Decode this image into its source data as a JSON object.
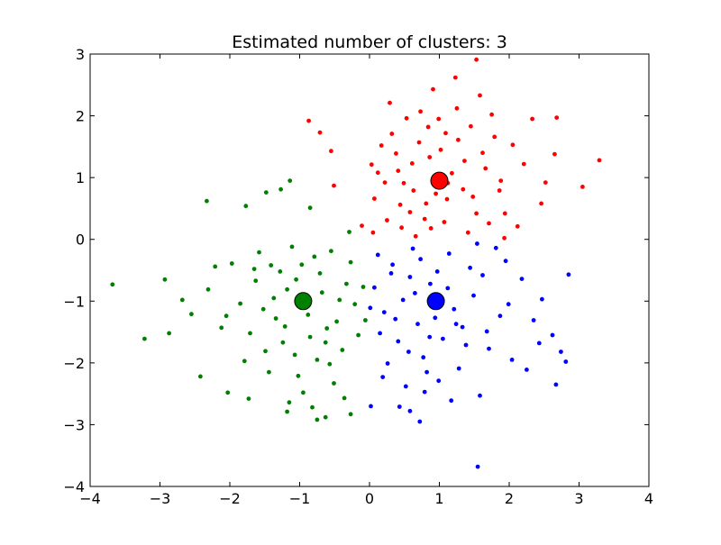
{
  "chart_data": {
    "type": "scatter",
    "title": "Estimated number of clusters: 3",
    "xlabel": "",
    "ylabel": "",
    "xlim": [
      -4,
      4
    ],
    "ylim": [
      -4,
      3
    ],
    "xticks": [
      -4,
      -3,
      -2,
      -1,
      0,
      1,
      2,
      3,
      4
    ],
    "yticks": [
      -4,
      -3,
      -2,
      -1,
      0,
      1,
      2,
      3
    ],
    "xtick_labels": [
      "−4",
      "−3",
      "−2",
      "−1",
      "0",
      "1",
      "2",
      "3",
      "4"
    ],
    "ytick_labels": [
      "−4",
      "−3",
      "−2",
      "−1",
      "0",
      "1",
      "2",
      "3"
    ],
    "grid": false,
    "legend": "none",
    "series": [
      {
        "color": "#ff0000",
        "center": [
          1.0,
          0.95
        ],
        "points": [
          [
            0.97,
            0.89
          ],
          [
            0.71,
            1.57
          ],
          [
            1.53,
            0.42
          ],
          [
            0.12,
            1.08
          ],
          [
            1.62,
            1.4
          ],
          [
            0.88,
            0.18
          ],
          [
            1.25,
            2.12
          ],
          [
            0.44,
            0.56
          ],
          [
            1.88,
            0.95
          ],
          [
            0.61,
            1.23
          ],
          [
            1.11,
            0.65
          ],
          [
            0.32,
            1.71
          ],
          [
            1.45,
            1.83
          ],
          [
            0.79,
            0.33
          ],
          [
            2.21,
            1.22
          ],
          [
            0.25,
            0.31
          ],
          [
            1.02,
            1.45
          ],
          [
            1.71,
            0.26
          ],
          [
            0.53,
            1.96
          ],
          [
            1.34,
            0.81
          ],
          [
            0.91,
            2.43
          ],
          [
            2.46,
            0.58
          ],
          [
            0.07,
            0.66
          ],
          [
            1.18,
            1.07
          ],
          [
            0.66,
            0.05
          ],
          [
            1.79,
            1.66
          ],
          [
            0.38,
            1.39
          ],
          [
            1.07,
            0.28
          ],
          [
            2.05,
            1.53
          ],
          [
            0.84,
            1.82
          ],
          [
            1.41,
            0.11
          ],
          [
            0.17,
            1.52
          ],
          [
            1.58,
            2.33
          ],
          [
            0.95,
            0.74
          ],
          [
            2.65,
            1.38
          ],
          [
            0.49,
            0.91
          ],
          [
            1.27,
            1.61
          ],
          [
            0.73,
            2.07
          ],
          [
            1.94,
            0.42
          ],
          [
            0.29,
            2.21
          ],
          [
            1.12,
            0.91
          ],
          [
            1.66,
            1.15
          ],
          [
            0.58,
            0.44
          ],
          [
            2.33,
            1.95
          ],
          [
            0.03,
            1.21
          ],
          [
            1.48,
            0.69
          ],
          [
            0.86,
            1.33
          ],
          [
            1.23,
            2.62
          ],
          [
            0.41,
            1.11
          ],
          [
            1.86,
            0.79
          ],
          [
            0.99,
            1.95
          ],
          [
            2.12,
            0.21
          ],
          [
            0.63,
            0.79
          ],
          [
            1.36,
            1.27
          ],
          [
            0.22,
            0.92
          ],
          [
            1.75,
            2.02
          ],
          [
            0.81,
            0.58
          ],
          [
            2.52,
            0.92
          ],
          [
            1.09,
            1.72
          ],
          [
            0.46,
            0.19
          ],
          [
            3.05,
            0.85
          ],
          [
            3.29,
            1.28
          ],
          [
            -0.87,
            1.92
          ],
          [
            -0.71,
            1.73
          ],
          [
            -0.55,
            1.43
          ],
          [
            -0.51,
            0.87
          ],
          [
            -0.11,
            0.22
          ],
          [
            0.05,
            0.11
          ],
          [
            1.53,
            2.91
          ],
          [
            1.93,
            0.02
          ],
          [
            2.68,
            1.97
          ]
        ]
      },
      {
        "color": "#0000ff",
        "center": [
          0.95,
          -1.0
        ],
        "points": [
          [
            0.91,
            -1.05
          ],
          [
            0.58,
            -0.61
          ],
          [
            1.33,
            -1.42
          ],
          [
            0.21,
            -1.18
          ],
          [
            1.62,
            -0.58
          ],
          [
            0.77,
            -1.91
          ],
          [
            1.14,
            -0.23
          ],
          [
            0.41,
            -1.65
          ],
          [
            1.87,
            -1.24
          ],
          [
            0.65,
            -0.87
          ],
          [
            1.05,
            -1.61
          ],
          [
            0.33,
            -0.41
          ],
          [
            1.49,
            -0.91
          ],
          [
            0.82,
            -2.15
          ],
          [
            2.18,
            -0.64
          ],
          [
            0.15,
            -1.52
          ],
          [
            1.21,
            -1.13
          ],
          [
            0.52,
            -2.38
          ],
          [
            1.71,
            -1.77
          ],
          [
            0.97,
            -0.52
          ],
          [
            2.35,
            -1.31
          ],
          [
            0.07,
            -0.78
          ],
          [
            1.28,
            -2.09
          ],
          [
            0.69,
            -1.37
          ],
          [
            1.95,
            -0.35
          ],
          [
            0.26,
            -2.01
          ],
          [
            1.12,
            -0.79
          ],
          [
            0.48,
            -0.98
          ],
          [
            1.58,
            -2.53
          ],
          [
            0.86,
            -1.58
          ],
          [
            2.47,
            -0.97
          ],
          [
            0.12,
            -0.25
          ],
          [
            1.38,
            -1.71
          ],
          [
            0.73,
            -0.32
          ],
          [
            2.04,
            -1.95
          ],
          [
            0.37,
            -1.29
          ],
          [
            1.17,
            -2.61
          ],
          [
            0.94,
            -1.27
          ],
          [
            1.81,
            -0.14
          ],
          [
            0.56,
            -1.82
          ],
          [
            2.62,
            -1.55
          ],
          [
            0.19,
            -2.23
          ],
          [
            1.44,
            -0.46
          ],
          [
            0.79,
            -2.47
          ],
          [
            1.99,
            -1.05
          ],
          [
            0.31,
            -0.55
          ],
          [
            1.24,
            -1.37
          ],
          [
            0.62,
            -0.15
          ],
          [
            1.68,
            -1.49
          ],
          [
            0.99,
            -2.29
          ],
          [
            0.43,
            -2.71
          ],
          [
            0.01,
            -1.11
          ],
          [
            2.25,
            -2.11
          ],
          [
            1.54,
            -0.07
          ],
          [
            0.87,
            -0.72
          ],
          [
            0.02,
            -2.7
          ],
          [
            0.58,
            -2.78
          ],
          [
            0.72,
            -2.95
          ],
          [
            1.55,
            -3.68
          ],
          [
            2.67,
            -2.35
          ],
          [
            2.74,
            -1.82
          ],
          [
            2.81,
            -1.98
          ],
          [
            2.85,
            -0.57
          ],
          [
            2.43,
            -1.68
          ]
        ]
      },
      {
        "color": "#008000",
        "center": [
          -0.95,
          -1.0
        ],
        "points": [
          [
            -0.93,
            -0.95
          ],
          [
            -1.28,
            -0.52
          ],
          [
            -0.61,
            -1.44
          ],
          [
            -1.52,
            -1.13
          ],
          [
            -0.33,
            -0.72
          ],
          [
            -1.07,
            -1.87
          ],
          [
            -0.79,
            -0.28
          ],
          [
            -1.71,
            -1.52
          ],
          [
            -0.47,
            -1.33
          ],
          [
            -1.18,
            -0.81
          ],
          [
            -0.85,
            -1.58
          ],
          [
            -1.41,
            -0.42
          ],
          [
            -0.21,
            -1.05
          ],
          [
            -1.02,
            -2.21
          ],
          [
            -1.63,
            -0.67
          ],
          [
            -0.57,
            -2.02
          ],
          [
            -1.34,
            -1.28
          ],
          [
            -0.71,
            -0.55
          ],
          [
            -1.85,
            -1.04
          ],
          [
            -0.39,
            -1.79
          ],
          [
            -1.11,
            -0.12
          ],
          [
            -0.95,
            -2.48
          ],
          [
            -1.49,
            -1.81
          ],
          [
            -0.27,
            -0.37
          ],
          [
            -1.24,
            -1.67
          ],
          [
            -0.68,
            -0.86
          ],
          [
            -1.97,
            -0.39
          ],
          [
            -0.51,
            -2.33
          ],
          [
            -1.37,
            -0.95
          ],
          [
            -0.88,
            -1.22
          ],
          [
            -2.12,
            -1.43
          ],
          [
            -0.16,
            -1.55
          ],
          [
            -1.15,
            -2.64
          ],
          [
            -0.75,
            -1.95
          ],
          [
            -1.58,
            -0.21
          ],
          [
            -0.43,
            -0.98
          ],
          [
            -1.05,
            -0.65
          ],
          [
            -2.31,
            -0.81
          ],
          [
            -0.63,
            -1.67
          ],
          [
            -1.44,
            -2.15
          ],
          [
            -0.97,
            -0.41
          ],
          [
            -0.09,
            -0.77
          ],
          [
            -1.79,
            -1.97
          ],
          [
            -0.55,
            -0.19
          ],
          [
            -1.21,
            -1.41
          ],
          [
            -0.36,
            -2.57
          ],
          [
            -2.05,
            -1.24
          ],
          [
            -0.82,
            -2.72
          ],
          [
            -1.65,
            -0.48
          ],
          [
            -0.06,
            -1.31
          ],
          [
            -3.68,
            -0.73
          ],
          [
            -3.22,
            -1.61
          ],
          [
            -2.93,
            -0.65
          ],
          [
            -2.87,
            -1.52
          ],
          [
            -2.33,
            0.62
          ],
          [
            -2.42,
            -2.22
          ],
          [
            -2.68,
            -0.98
          ],
          [
            -2.55,
            -1.21
          ],
          [
            -2.03,
            -2.48
          ],
          [
            -1.73,
            -2.58
          ],
          [
            -1.77,
            0.54
          ],
          [
            -1.18,
            -2.79
          ],
          [
            -0.75,
            -2.92
          ],
          [
            -0.63,
            -2.88
          ],
          [
            -0.27,
            -2.83
          ],
          [
            -0.29,
            0.12
          ],
          [
            -0.85,
            0.51
          ],
          [
            -1.14,
            0.95
          ],
          [
            -1.27,
            0.81
          ],
          [
            -1.48,
            0.76
          ],
          [
            -2.21,
            -0.44
          ]
        ]
      }
    ]
  }
}
